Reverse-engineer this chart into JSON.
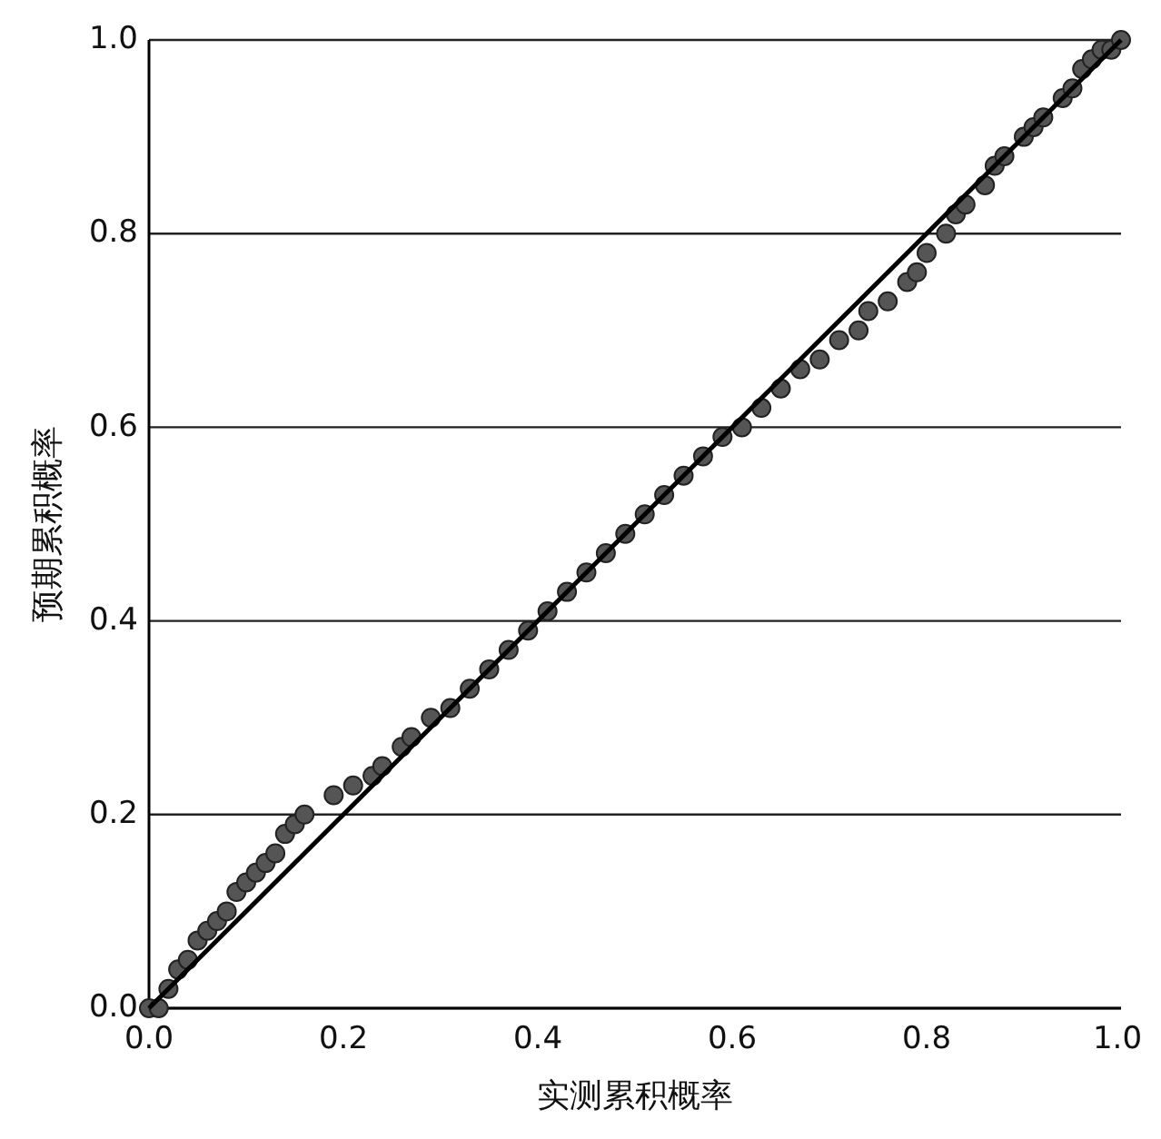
{
  "chart_data": {
    "type": "scatter",
    "xlabel": "实测累积概率",
    "ylabel": "预期累积概率",
    "xlim": [
      0,
      1
    ],
    "ylim": [
      0,
      1
    ],
    "xticks": [
      {
        "value": 0,
        "label": "0.0"
      },
      {
        "value": 0.2,
        "label": "0.2"
      },
      {
        "value": 0.4,
        "label": "0.4"
      },
      {
        "value": 0.6,
        "label": "0.6"
      },
      {
        "value": 0.8,
        "label": "0.8"
      },
      {
        "value": 1,
        "label": "1.0"
      }
    ],
    "yticks": [
      {
        "value": 0,
        "label": "0.0"
      },
      {
        "value": 0.2,
        "label": "0.2"
      },
      {
        "value": 0.4,
        "label": "0.4"
      },
      {
        "value": 0.6,
        "label": "0.6"
      },
      {
        "value": 0.8,
        "label": "0.8"
      },
      {
        "value": 1,
        "label": "1.0"
      }
    ],
    "grid": "y",
    "series": [
      {
        "marker": "circle",
        "color": "#555555",
        "x": [
          0.0,
          0.01,
          0.02,
          0.03,
          0.04,
          0.05,
          0.06,
          0.07,
          0.08,
          0.09,
          0.1,
          0.11,
          0.12,
          0.13,
          0.14,
          0.15,
          0.16,
          0.19,
          0.21,
          0.23,
          0.24,
          0.26,
          0.27,
          0.29,
          0.31,
          0.33,
          0.35,
          0.37,
          0.39,
          0.41,
          0.43,
          0.45,
          0.47,
          0.49,
          0.51,
          0.53,
          0.55,
          0.57,
          0.59,
          0.61,
          0.63,
          0.65,
          0.67,
          0.69,
          0.71,
          0.73,
          0.74,
          0.76,
          0.78,
          0.79,
          0.8,
          0.82,
          0.83,
          0.84,
          0.86,
          0.87,
          0.88,
          0.9,
          0.91,
          0.92,
          0.94,
          0.95,
          0.96,
          0.97,
          0.98,
          0.99,
          1.0
        ],
        "values": [
          0.0,
          0.0,
          0.02,
          0.04,
          0.05,
          0.07,
          0.08,
          0.09,
          0.1,
          0.12,
          0.13,
          0.14,
          0.15,
          0.16,
          0.18,
          0.19,
          0.2,
          0.22,
          0.23,
          0.24,
          0.25,
          0.27,
          0.28,
          0.3,
          0.31,
          0.33,
          0.35,
          0.37,
          0.39,
          0.41,
          0.43,
          0.45,
          0.47,
          0.49,
          0.51,
          0.53,
          0.55,
          0.57,
          0.59,
          0.6,
          0.62,
          0.64,
          0.66,
          0.67,
          0.69,
          0.7,
          0.72,
          0.73,
          0.75,
          0.76,
          0.78,
          0.8,
          0.82,
          0.83,
          0.85,
          0.87,
          0.88,
          0.9,
          0.91,
          0.92,
          0.94,
          0.95,
          0.97,
          0.98,
          0.99,
          0.99,
          1.0
        ]
      },
      {
        "type": "line",
        "color": "#000000",
        "x": [
          0.0,
          1.0
        ],
        "values": [
          0.0,
          1.0
        ]
      }
    ]
  }
}
